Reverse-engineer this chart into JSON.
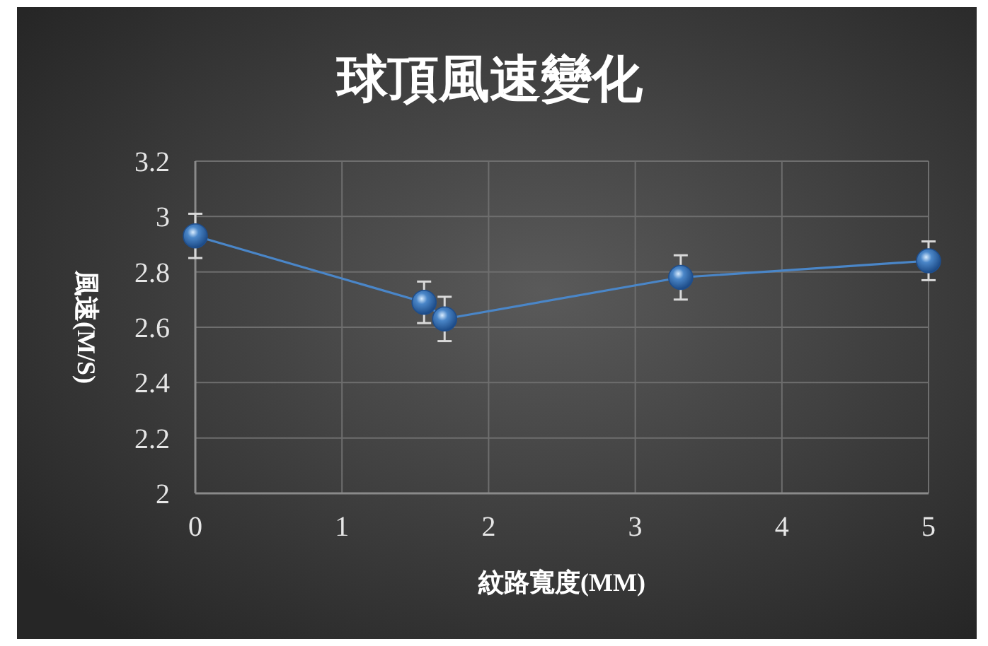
{
  "chart_data": {
    "type": "line",
    "title": "球頂風速變化",
    "xlabel": "紋路寬度(MM)",
    "ylabel": "風速(M/S)",
    "x": [
      0,
      1.56,
      1.7,
      3.31,
      5
    ],
    "series": [
      {
        "color": "#4a86c8",
        "values": [
          2.93,
          2.69,
          2.63,
          2.78,
          2.84
        ],
        "errors": [
          0.08,
          0.075,
          0.08,
          0.08,
          0.07
        ]
      }
    ],
    "xlim": [
      0,
      5
    ],
    "xticks": [
      0,
      1,
      2,
      3,
      4,
      5
    ],
    "ylim": [
      2,
      3.2
    ],
    "yticks": [
      2,
      {
        "value": 2.2,
        "label": "2.2"
      },
      {
        "value": 2.4,
        "label": "2.4"
      },
      {
        "value": 2.6,
        "label": "2.6"
      },
      {
        "value": 2.8,
        "label": "2.8"
      },
      3,
      {
        "value": 3.2,
        "label": "3.2"
      }
    ],
    "grid": true,
    "marker": "circle",
    "line_style": "solid"
  }
}
